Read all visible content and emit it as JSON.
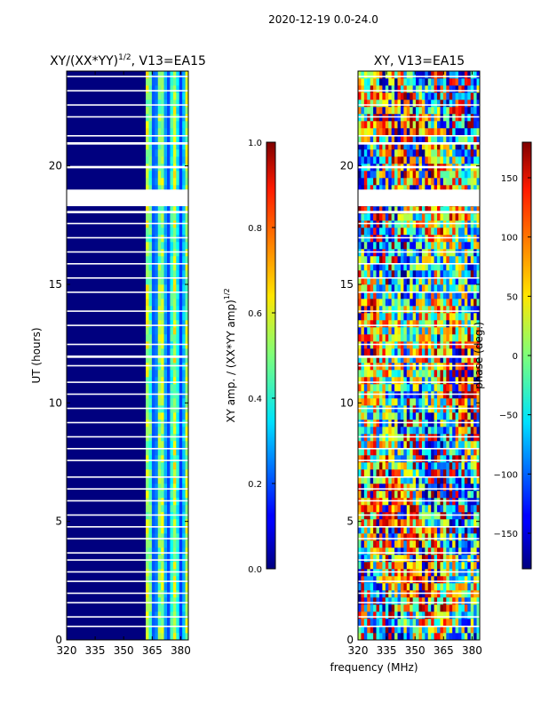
{
  "suptitle": "2020-12-19 0.0-24.0",
  "chart_data": [
    {
      "type": "heatmap",
      "title": "XY/(XX*YY)^{1/2}, V13=EA15",
      "title_main": "XY/(XX*YY)",
      "title_exp": "1/2",
      "title_tail": ", V13=EA15",
      "xlabel": "",
      "ylabel": "UT (hours)",
      "xlim": [
        320,
        384
      ],
      "ylim": [
        0,
        24
      ],
      "xticks": [
        320,
        335,
        350,
        365,
        380
      ],
      "yticks": [
        0,
        5,
        10,
        15,
        20
      ],
      "colorbar": {
        "label": "XY amp. / (XX*YY amp)^{1/2}",
        "label_main": "XY amp. / (XX*YY amp)",
        "label_exp": "1/2",
        "range": [
          0.0,
          1.0
        ],
        "ticks": [
          0.0,
          0.2,
          0.4,
          0.6,
          0.8,
          1.0
        ],
        "tick_labels": [
          "0.0",
          "0.2",
          "0.4",
          "0.6",
          "0.8",
          "1.0"
        ],
        "colormap": "jet"
      },
      "description": "Amplitude ratio per frequency channel vs time; near 0 below ~361 MHz, elevated 0.2-0.7 in 361-382 MHz band; horizontal white gaps of flagged data, widest near 18.3-19.0 h"
    },
    {
      "type": "heatmap",
      "title": "XY, V13=EA15",
      "xlabel": "frequency (MHz)",
      "ylabel": "",
      "xlim": [
        320,
        384
      ],
      "ylim": [
        0,
        24
      ],
      "xticks": [
        320,
        335,
        350,
        365,
        380
      ],
      "yticks": [
        0,
        5,
        10,
        15,
        20
      ],
      "colorbar": {
        "label": "phase (deg.)",
        "range": [
          -180,
          180
        ],
        "ticks": [
          -150,
          -100,
          -50,
          0,
          50,
          100,
          150
        ],
        "tick_labels": [
          "−150",
          "−100",
          "−50",
          "0",
          "50",
          "100",
          "150"
        ],
        "colormap": "jet"
      },
      "description": "XY phase per frequency channel vs time, full range -180 to 180 degrees, noisy with slow drift; same flagged gaps"
    }
  ]
}
